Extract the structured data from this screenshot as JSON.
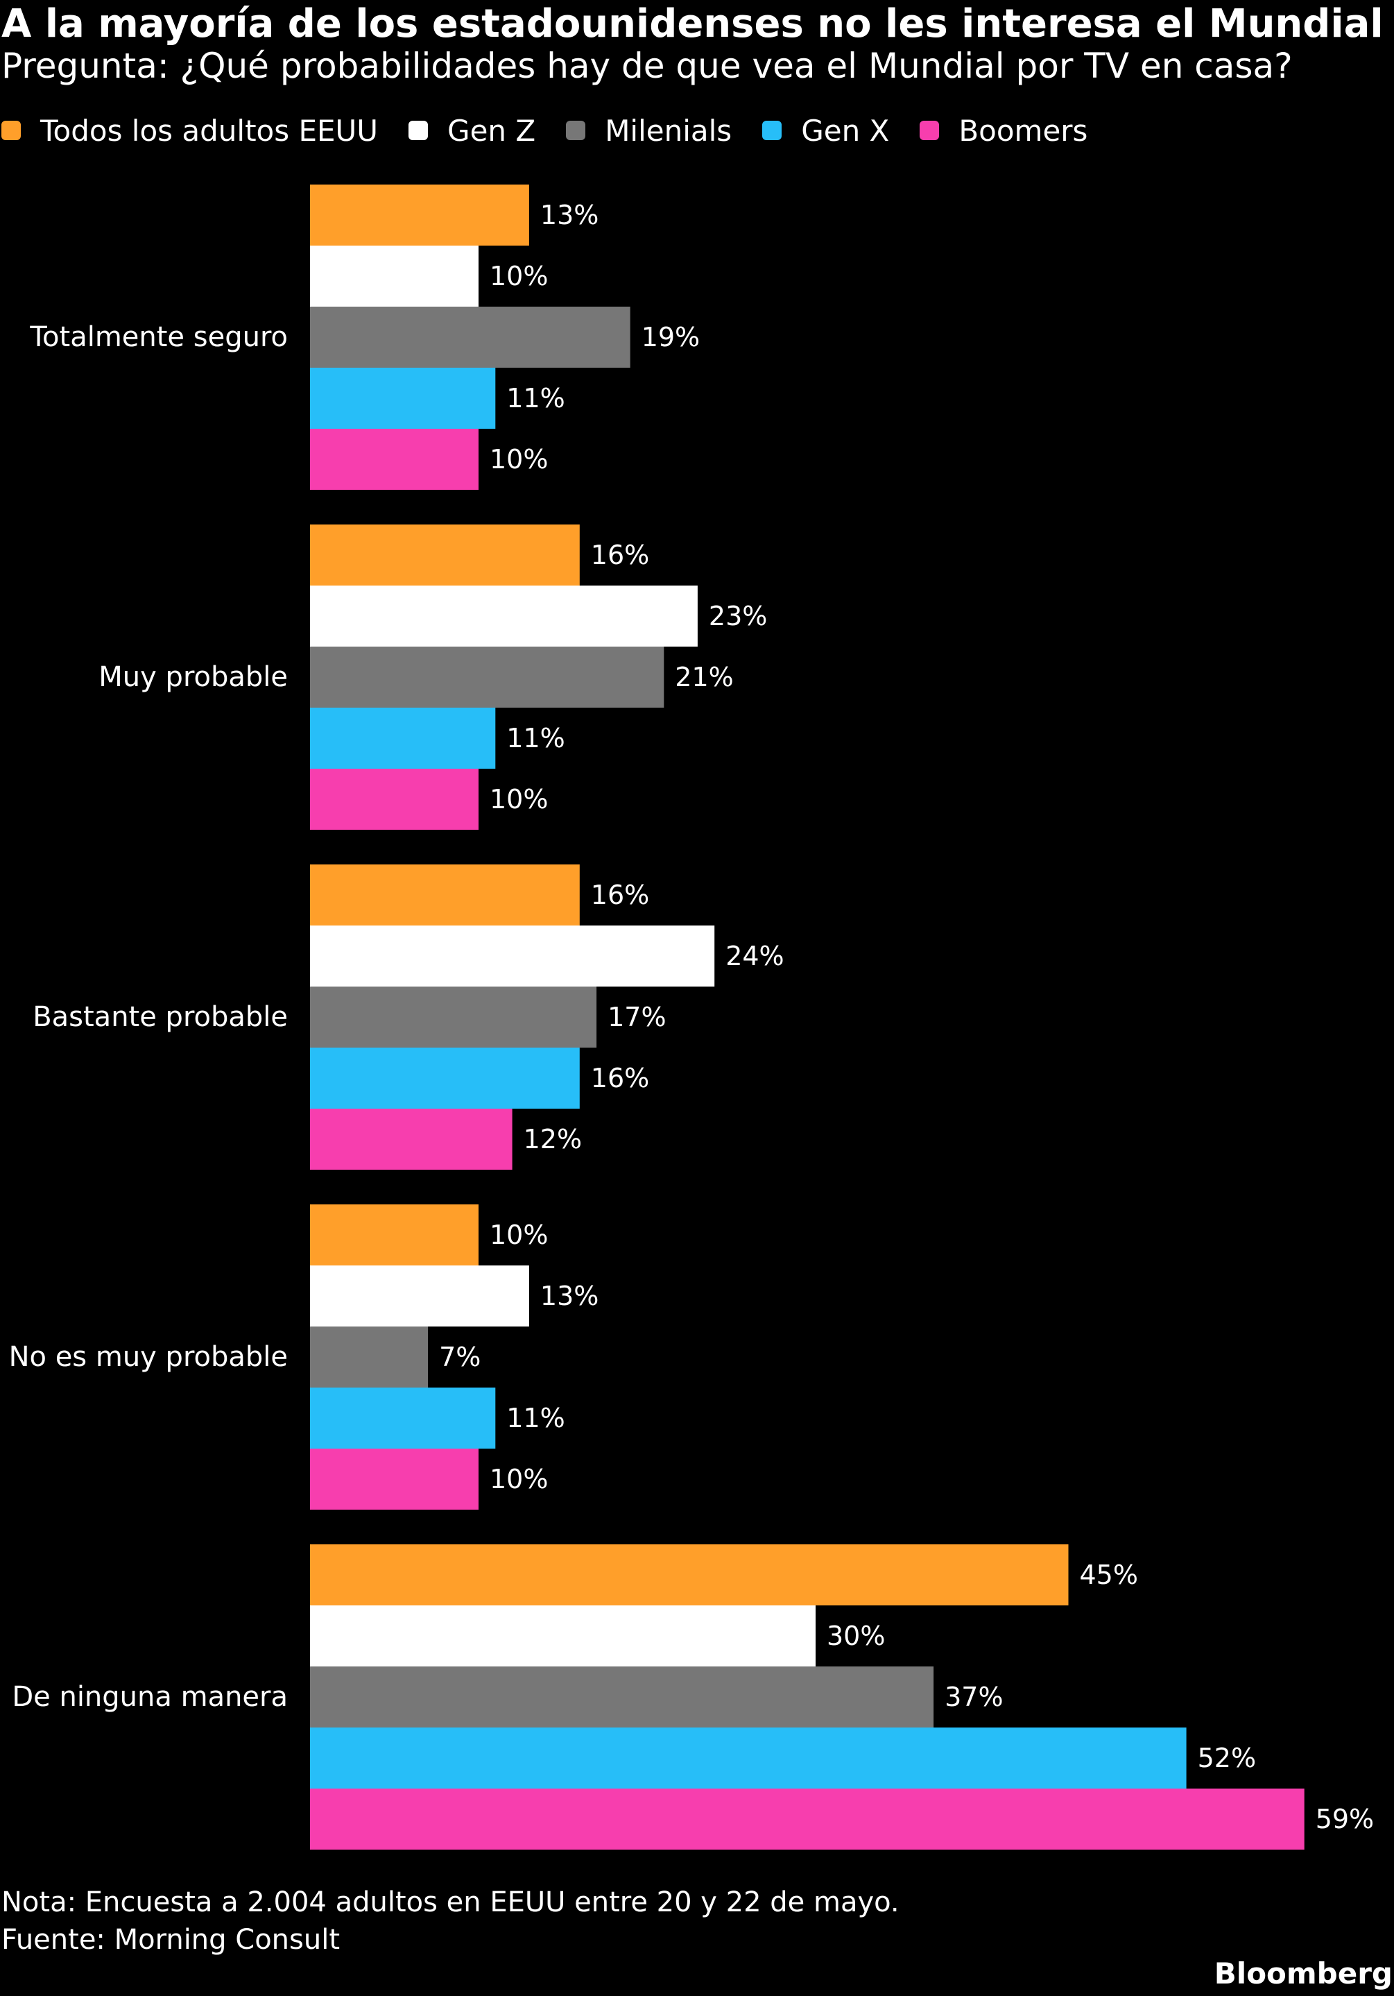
{
  "colors": {
    "background": "#000000",
    "text": "#ffffff",
    "series": [
      "#FF9F2A",
      "#FFFFFF",
      "#777777",
      "#27BEF8",
      "#F73EAE"
    ]
  },
  "chart_data": {
    "type": "bar",
    "orientation": "horizontal",
    "title": "A la mayoría de los estadounidenses no les interesa el Mundial",
    "subtitle": "Pregunta: ¿Qué probabilidades hay de que vea el Mundial por TV en casa?",
    "legend_position": "top-left",
    "grid": false,
    "xlim": [
      0,
      60
    ],
    "value_suffix": "%",
    "categories": [
      "Totalmente seguro",
      "Muy probable",
      "Bastante probable",
      "No es muy probable",
      "De ninguna manera"
    ],
    "series": [
      {
        "name": "Todos los adultos EEUU",
        "color": "#FF9F2A",
        "values": [
          13,
          16,
          16,
          10,
          45
        ]
      },
      {
        "name": "Gen Z",
        "color": "#FFFFFF",
        "values": [
          10,
          23,
          24,
          13,
          30
        ]
      },
      {
        "name": "Milenials",
        "color": "#777777",
        "values": [
          19,
          21,
          17,
          7,
          37
        ]
      },
      {
        "name": "Gen X",
        "color": "#27BEF8",
        "values": [
          11,
          11,
          16,
          11,
          52
        ]
      },
      {
        "name": "Boomers",
        "color": "#F73EAE",
        "values": [
          10,
          10,
          12,
          10,
          59
        ]
      }
    ]
  },
  "footer": {
    "note": "Nota: Encuesta a 2.004 adultos en EEUU entre 20 y 22 de mayo.",
    "source": "Fuente: Morning Consult",
    "brand": "Bloomberg"
  }
}
